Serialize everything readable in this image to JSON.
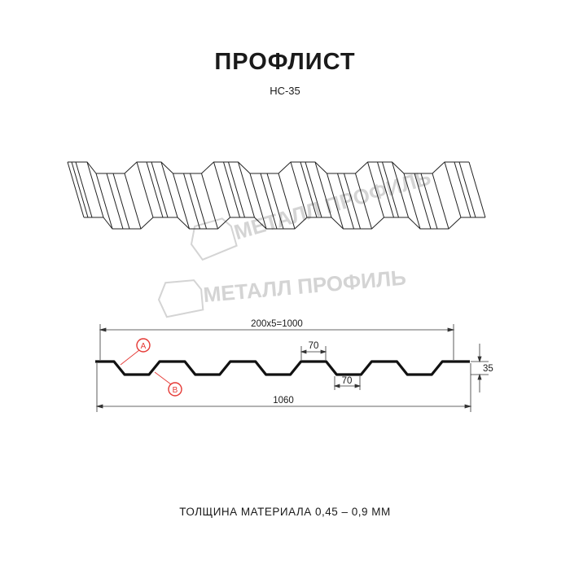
{
  "header": {
    "title": "ПРОФЛИСТ",
    "subtitle": "НС-35"
  },
  "watermark": {
    "text": "МЕТАЛЛ ПРОФИЛЬ"
  },
  "drawing": {
    "dim_pitch": "200x5=1000",
    "dim_total": "1060",
    "dim_height": "35",
    "dim_top_flange": "70",
    "dim_bottom_flange": "70",
    "label_a": "A",
    "label_b": "B"
  },
  "colors": {
    "line": "#1a1a1a",
    "callout": "#e53935",
    "watermark": "#d4d4d4"
  },
  "footer": {
    "text": "ТОЛЩИНА МАТЕРИАЛА 0,45 – 0,9 ММ"
  }
}
